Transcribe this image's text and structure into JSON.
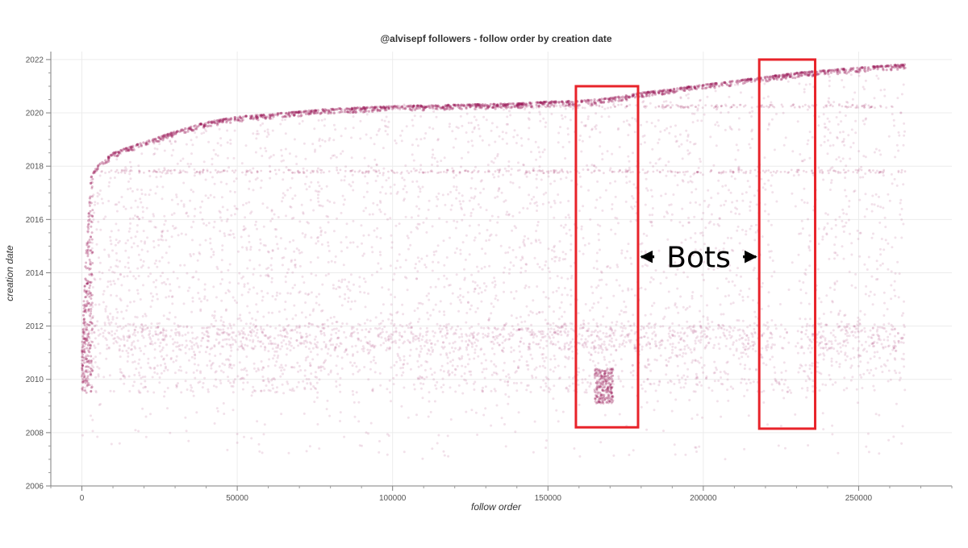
{
  "chart_data": {
    "type": "scatter",
    "title": "@alvisepf followers - follow order by creation date",
    "xlabel": "follow order",
    "ylabel": "creation date",
    "xlim": [
      -10000,
      280000
    ],
    "ylim": [
      2006,
      2022.3
    ],
    "x_ticks": [
      0,
      50000,
      100000,
      150000,
      200000,
      250000
    ],
    "x_tick_labels": [
      "0",
      "50000",
      "100000",
      "150000",
      "200000",
      "250000"
    ],
    "y_ticks": [
      2006,
      2008,
      2010,
      2012,
      2014,
      2016,
      2018,
      2020,
      2022
    ],
    "y_tick_labels": [
      "2006",
      "2008",
      "2010",
      "2012",
      "2014",
      "2016",
      "2018",
      "2020",
      "2022"
    ],
    "grid": true,
    "point_color": "#9b1b5a",
    "envelope": {
      "x": [
        0,
        1000,
        3000,
        5000,
        10000,
        20000,
        30000,
        40000,
        50000,
        60000,
        80000,
        100000,
        120000,
        140000,
        150000,
        160000,
        165000,
        170000,
        180000,
        190000,
        200000,
        210000,
        220000,
        230000,
        240000,
        250000,
        265000
      ],
      "y": [
        2011.0,
        2014.0,
        2017.6,
        2018.0,
        2018.5,
        2018.9,
        2019.3,
        2019.65,
        2019.85,
        2019.95,
        2020.15,
        2020.25,
        2020.3,
        2020.35,
        2020.42,
        2020.45,
        2020.5,
        2020.55,
        2020.75,
        2020.9,
        2021.05,
        2021.2,
        2021.35,
        2021.5,
        2021.6,
        2021.7,
        2021.82
      ]
    },
    "bot_clusters": [
      {
        "x_start": 165000,
        "x_end": 171000,
        "y_min": 2009.1,
        "y_max": 2010.4
      },
      {
        "x_start": 222000,
        "x_end": 231000,
        "y_min": 2010.5,
        "y_max": 2021.4
      }
    ],
    "highlight_boxes": [
      {
        "x_start": 159000,
        "x_end": 179000,
        "y_min": 2008.2,
        "y_max": 2021.0
      },
      {
        "x_start": 218000,
        "x_end": 236000,
        "y_min": 2008.15,
        "y_max": 2022.0
      }
    ],
    "highlight_color": "#e8232a",
    "annotation": {
      "text": "Bots",
      "x_left": 179000,
      "x_right": 218000,
      "y": 2014.6
    }
  }
}
